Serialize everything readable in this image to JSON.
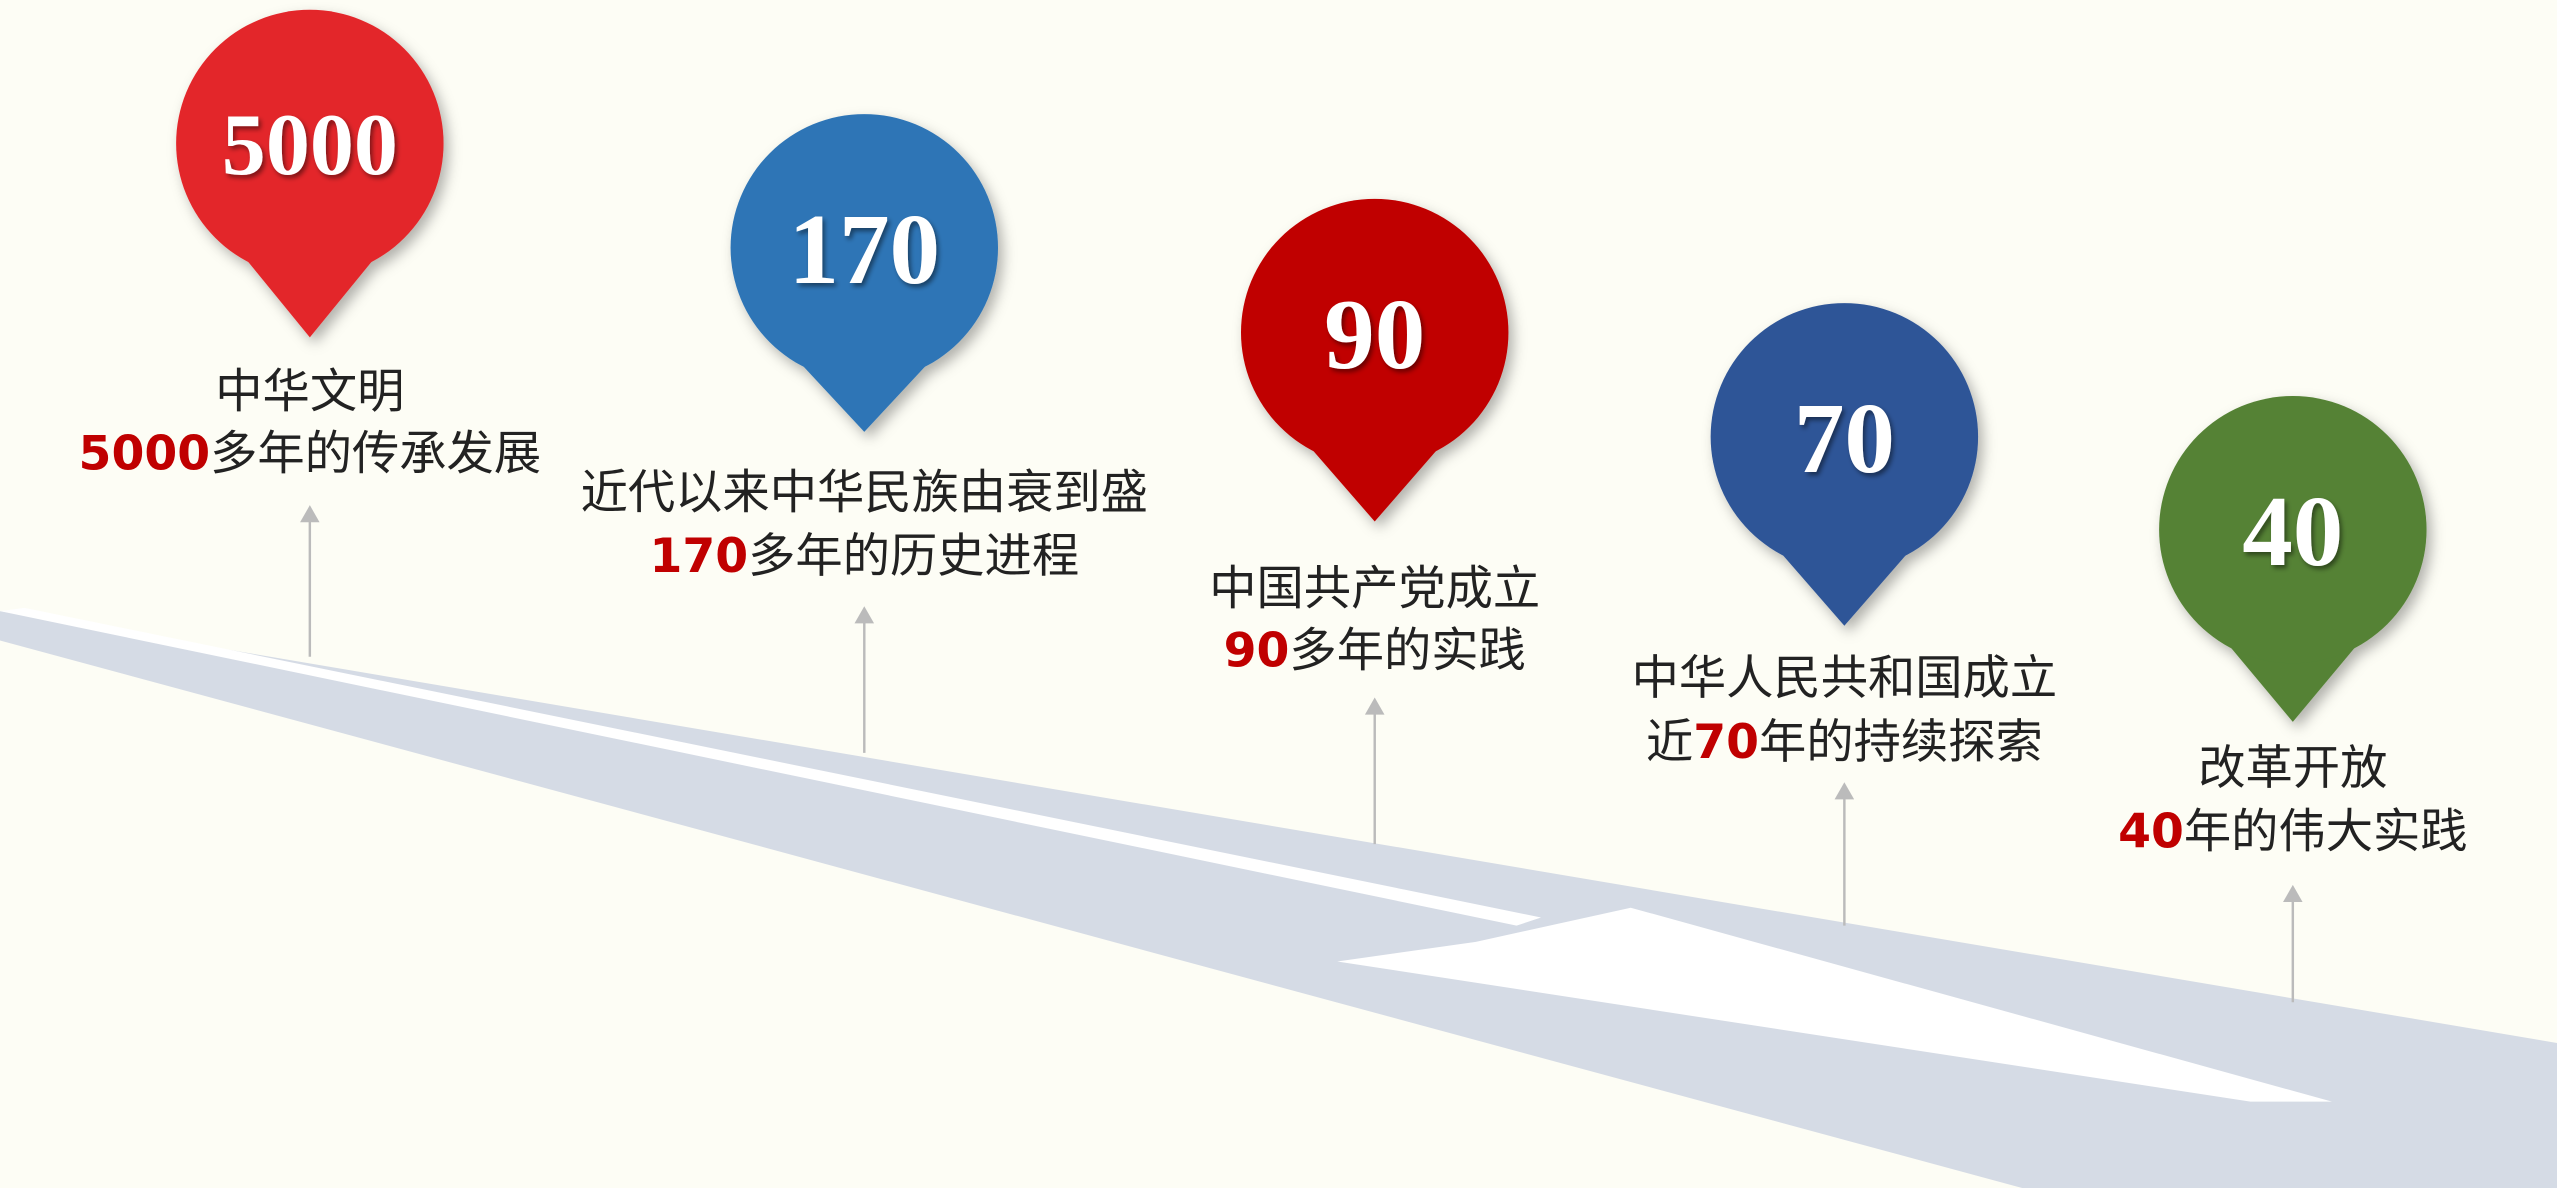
{
  "milestones": [
    {
      "pin": "5000",
      "title": "中华文明",
      "highlight": "5000",
      "suffix": "多年的传承发展",
      "color": "#e3262b"
    },
    {
      "pin": "170",
      "title": "近代以来中华民族由衰到盛",
      "highlight": "170",
      "suffix": "多年的历史进程",
      "color": "#2e75b6"
    },
    {
      "pin": "90",
      "title": "中国共产党成立",
      "highlight": "90",
      "suffix": "多年的实践",
      "color": "#c00000"
    },
    {
      "pin": "70",
      "title": "中华人民共和国成立",
      "prefix": "近",
      "highlight": "70",
      "suffix": "年的持续探索",
      "color": "#2f5597"
    },
    {
      "pin": "40",
      "title": "改革开放",
      "highlight": "40",
      "suffix": "年的伟大实践",
      "color": "#548235"
    }
  ]
}
